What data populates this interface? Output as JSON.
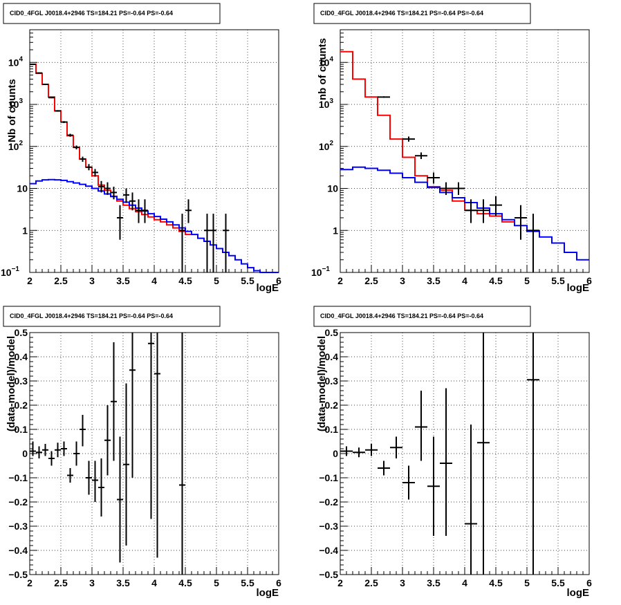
{
  "chart_data": [
    {
      "type": "line",
      "title": "CID0_4FGL J0018.4+2946 TS=184.21 PS=-0.64 PS=-0.64",
      "xlabel": "logE",
      "ylabel": "Nb of counts",
      "xlim": [
        2,
        6
      ],
      "ylim": [
        0.1,
        60000
      ],
      "yscale": "log",
      "grid": true,
      "x_ticks": [
        "2",
        "2.5",
        "3",
        "3.5",
        "4",
        "4.5",
        "5",
        "5.5",
        "6"
      ],
      "y_ticks": [
        {
          "v": 0.1,
          "label": "10",
          "exp": "−1"
        },
        {
          "v": 1,
          "label": "1"
        },
        {
          "v": 10,
          "label": "10"
        },
        {
          "v": 100,
          "label": "10",
          "exp": "2"
        },
        {
          "v": 1000,
          "label": "10",
          "exp": "3"
        },
        {
          "v": 10000,
          "label": "10",
          "exp": "4"
        }
      ],
      "series": [
        {
          "kind": "step",
          "color": "#ff0000",
          "x_start": 2,
          "bin_width": 0.1,
          "values": [
            9000,
            5500,
            3000,
            1500,
            700,
            380,
            180,
            95,
            50,
            32,
            20,
            12,
            9,
            6.5,
            5,
            4,
            3.3,
            2.8,
            2.4,
            2.1,
            1.8,
            1.6,
            1.35,
            1.15,
            0.95,
            0.8
          ]
        },
        {
          "kind": "step",
          "color": "#0000ff",
          "x_start": 2,
          "bin_width": 0.1,
          "values": [
            13,
            15,
            16,
            16.2,
            16,
            15.5,
            14.5,
            13.5,
            12.5,
            11.3,
            10,
            8.7,
            7.4,
            6.4,
            5.5,
            4.7,
            4,
            3.4,
            2.9,
            2.5,
            2.15,
            1.85,
            1.6,
            1.35,
            1.15,
            0.95,
            0.8,
            0.65,
            0.55,
            0.45,
            0.37,
            0.3,
            0.25,
            0.2,
            0.16,
            0.13,
            0.11,
            0.09,
            0.08,
            0.07
          ]
        },
        {
          "kind": "points",
          "color": "#000000",
          "half_width": 0.05,
          "points": [
            {
              "x": 2.05,
              "y": 9000,
              "lo": 8800,
              "hi": 9200
            },
            {
              "x": 2.15,
              "y": 5600,
              "lo": 5450,
              "hi": 5750
            },
            {
              "x": 2.25,
              "y": 3000,
              "lo": 2900,
              "hi": 3100
            },
            {
              "x": 2.35,
              "y": 1450,
              "lo": 1400,
              "hi": 1500
            },
            {
              "x": 2.45,
              "y": 700,
              "lo": 670,
              "hi": 730
            },
            {
              "x": 2.55,
              "y": 380,
              "lo": 360,
              "hi": 400
            },
            {
              "x": 2.65,
              "y": 185,
              "lo": 170,
              "hi": 200
            },
            {
              "x": 2.75,
              "y": 95,
              "lo": 85,
              "hi": 105
            },
            {
              "x": 2.85,
              "y": 50,
              "lo": 43,
              "hi": 57
            },
            {
              "x": 2.95,
              "y": 32,
              "lo": 27,
              "hi": 38
            },
            {
              "x": 3.05,
              "y": 24,
              "lo": 19,
              "hi": 29
            },
            {
              "x": 3.15,
              "y": 11,
              "lo": 8,
              "hi": 15
            },
            {
              "x": 3.25,
              "y": 10,
              "lo": 7,
              "hi": 14
            },
            {
              "x": 3.35,
              "y": 8,
              "lo": 5.5,
              "hi": 11
            },
            {
              "x": 3.45,
              "y": 2,
              "lo": 0.6,
              "hi": 4
            },
            {
              "x": 3.55,
              "y": 7,
              "lo": 4.5,
              "hi": 10
            },
            {
              "x": 3.65,
              "y": 5,
              "lo": 3,
              "hi": 8
            },
            {
              "x": 3.75,
              "y": 3,
              "lo": 1.5,
              "hi": 5.5
            },
            {
              "x": 3.85,
              "y": 3,
              "lo": 1.5,
              "hi": 5.5
            },
            {
              "x": 4.45,
              "y": 1,
              "lo": 0.1,
              "hi": 2.5
            },
            {
              "x": 4.55,
              "y": 3,
              "lo": 1.5,
              "hi": 5.5
            },
            {
              "x": 4.85,
              "y": 1,
              "lo": 0.1,
              "hi": 2.5
            },
            {
              "x": 4.95,
              "y": 1,
              "lo": 0.1,
              "hi": 2.5
            },
            {
              "x": 5.15,
              "y": 1,
              "lo": 0.1,
              "hi": 2.5
            }
          ]
        }
      ]
    },
    {
      "type": "line",
      "title": "CID0_4FGL J0018.4+2946 TS=184.21 PS=-0.64 PS=-0.64",
      "xlabel": "logE",
      "ylabel": "nb of counts",
      "xlim": [
        2,
        6
      ],
      "ylim": [
        0.1,
        60000
      ],
      "yscale": "log",
      "grid": true,
      "x_ticks": [
        "2",
        "2.5",
        "3",
        "3.5",
        "4",
        "4.5",
        "5",
        "5.5",
        "6"
      ],
      "y_ticks": [
        {
          "v": 0.1,
          "label": "10",
          "exp": "−1"
        },
        {
          "v": 1,
          "label": "1"
        },
        {
          "v": 10,
          "label": "10"
        },
        {
          "v": 100,
          "label": "10",
          "exp": "2"
        },
        {
          "v": 1000,
          "label": "10",
          "exp": "3"
        },
        {
          "v": 10000,
          "label": "10",
          "exp": "4"
        }
      ],
      "series": [
        {
          "kind": "step",
          "color": "#ff0000",
          "x_start": 2,
          "bin_width": 0.2,
          "values": [
            18000,
            4000,
            1500,
            550,
            150,
            55,
            20,
            11,
            9,
            5,
            3,
            2.5,
            2.2,
            1.6
          ]
        },
        {
          "kind": "step",
          "color": "#0000ff",
          "x_start": 2,
          "bin_width": 0.2,
          "values": [
            28,
            32,
            30,
            27,
            23,
            18,
            14,
            10.5,
            8,
            6,
            4.6,
            3.4,
            2.5,
            1.8,
            1.3,
            0.95,
            0.7,
            0.5,
            0.3,
            0.2
          ]
        },
        {
          "kind": "points",
          "color": "#000000",
          "half_width": 0.1,
          "points": [
            {
              "x": 2.7,
              "y": 1500,
              "lo": 1440,
              "hi": 1560
            },
            {
              "x": 3.1,
              "y": 150,
              "lo": 130,
              "hi": 172
            },
            {
              "x": 3.3,
              "y": 60,
              "lo": 50,
              "hi": 72
            },
            {
              "x": 3.5,
              "y": 18,
              "lo": 13,
              "hi": 24
            },
            {
              "x": 3.7,
              "y": 10,
              "lo": 7,
              "hi": 14
            },
            {
              "x": 3.9,
              "y": 10,
              "lo": 7,
              "hi": 14
            },
            {
              "x": 4.1,
              "y": 3,
              "lo": 1.5,
              "hi": 5.5
            },
            {
              "x": 4.3,
              "y": 3,
              "lo": 1.5,
              "hi": 5.5
            },
            {
              "x": 4.5,
              "y": 4,
              "lo": 2.2,
              "hi": 6.5
            },
            {
              "x": 4.9,
              "y": 2,
              "lo": 0.6,
              "hi": 4
            },
            {
              "x": 5.1,
              "y": 1,
              "lo": 0.1,
              "hi": 2.5
            }
          ]
        }
      ]
    },
    {
      "type": "scatter",
      "title": "CID0_4FGL J0018.4+2946 TS=184.21 PS=-0.64 PS=-0.64",
      "xlabel": "logE",
      "ylabel": "(data-model)/model",
      "xlim": [
        2,
        6
      ],
      "ylim": [
        -0.5,
        0.5
      ],
      "yscale": "linear",
      "grid": true,
      "x_ticks": [
        "2",
        "2.5",
        "3",
        "3.5",
        "4",
        "4.5",
        "5",
        "5.5",
        "6"
      ],
      "y_ticks": [
        {
          "v": -0.5,
          "label": "−0.5"
        },
        {
          "v": -0.4,
          "label": "−0.4"
        },
        {
          "v": -0.3,
          "label": "−0.3"
        },
        {
          "v": -0.2,
          "label": "−0.2"
        },
        {
          "v": -0.1,
          "label": "−0.1"
        },
        {
          "v": 0,
          "label": "0"
        },
        {
          "v": 0.1,
          "label": "0.1"
        },
        {
          "v": 0.2,
          "label": "0.2"
        },
        {
          "v": 0.3,
          "label": "0.3"
        },
        {
          "v": 0.4,
          "label": "0.4"
        },
        {
          "v": 0.5,
          "label": "0.5"
        }
      ],
      "series": [
        {
          "kind": "points",
          "color": "#000000",
          "half_width": 0.05,
          "points": [
            {
              "x": 2.05,
              "y": 0.01,
              "lo": -0.01,
              "hi": 0.05
            },
            {
              "x": 2.15,
              "y": 0.005,
              "lo": -0.02,
              "hi": 0.03
            },
            {
              "x": 2.25,
              "y": 0.015,
              "lo": -0.01,
              "hi": 0.04
            },
            {
              "x": 2.35,
              "y": -0.02,
              "lo": -0.05,
              "hi": 0.01
            },
            {
              "x": 2.45,
              "y": 0.015,
              "lo": -0.015,
              "hi": 0.045
            },
            {
              "x": 2.55,
              "y": 0.02,
              "lo": -0.01,
              "hi": 0.05
            },
            {
              "x": 2.65,
              "y": -0.09,
              "lo": -0.12,
              "hi": -0.06
            },
            {
              "x": 2.75,
              "y": 0.0,
              "lo": -0.05,
              "hi": 0.05
            },
            {
              "x": 2.85,
              "y": 0.1,
              "lo": 0.03,
              "hi": 0.16
            },
            {
              "x": 2.95,
              "y": -0.1,
              "lo": -0.17,
              "hi": -0.03
            },
            {
              "x": 3.05,
              "y": -0.11,
              "lo": -0.2,
              "hi": -0.03
            },
            {
              "x": 3.15,
              "y": -0.14,
              "lo": -0.26,
              "hi": -0.02
            },
            {
              "x": 3.25,
              "y": 0.055,
              "lo": -0.09,
              "hi": 0.2
            },
            {
              "x": 3.35,
              "y": 0.215,
              "lo": -0.03,
              "hi": 0.46
            },
            {
              "x": 3.45,
              "y": -0.19,
              "lo": -0.45,
              "hi": 0.07
            },
            {
              "x": 3.55,
              "y": -0.045,
              "lo": -0.38,
              "hi": 0.29
            },
            {
              "x": 3.65,
              "y": 0.345,
              "lo": -0.1,
              "hi": 0.5
            },
            {
              "x": 3.95,
              "y": 0.455,
              "lo": -0.27,
              "hi": 0.5
            },
            {
              "x": 4.05,
              "y": 0.33,
              "lo": -0.43,
              "hi": 0.5
            },
            {
              "x": 4.45,
              "y": -0.13,
              "lo": -0.5,
              "hi": 0.5
            }
          ]
        }
      ]
    },
    {
      "type": "scatter",
      "title": "CID0_4FGL J0018.4+2946 TS=184.21 PS=-0.64 PS=-0.64",
      "xlabel": "logE",
      "ylabel": "(data-model)/model",
      "xlim": [
        2,
        6
      ],
      "ylim": [
        -0.5,
        0.5
      ],
      "yscale": "linear",
      "grid": true,
      "x_ticks": [
        "2",
        "2.5",
        "3",
        "3.5",
        "4",
        "4.5",
        "5",
        "5.5",
        "6"
      ],
      "y_ticks": [
        {
          "v": -0.5,
          "label": "−0.5"
        },
        {
          "v": -0.4,
          "label": "−0.4"
        },
        {
          "v": -0.3,
          "label": "−0.3"
        },
        {
          "v": -0.2,
          "label": "−0.2"
        },
        {
          "v": -0.1,
          "label": "−0.1"
        },
        {
          "v": 0,
          "label": "0"
        },
        {
          "v": 0.1,
          "label": "0.1"
        },
        {
          "v": 0.2,
          "label": "0.2"
        },
        {
          "v": 0.3,
          "label": "0.3"
        },
        {
          "v": 0.4,
          "label": "0.4"
        },
        {
          "v": 0.5,
          "label": "0.5"
        }
      ],
      "series": [
        {
          "kind": "points",
          "color": "#000000",
          "half_width": 0.1,
          "points": [
            {
              "x": 2.1,
              "y": 0.01,
              "lo": -0.01,
              "hi": 0.03
            },
            {
              "x": 2.3,
              "y": 0.005,
              "lo": -0.015,
              "hi": 0.025
            },
            {
              "x": 2.5,
              "y": 0.015,
              "lo": -0.01,
              "hi": 0.04
            },
            {
              "x": 2.7,
              "y": -0.06,
              "lo": -0.09,
              "hi": -0.03
            },
            {
              "x": 2.9,
              "y": 0.025,
              "lo": -0.02,
              "hi": 0.07
            },
            {
              "x": 3.1,
              "y": -0.12,
              "lo": -0.19,
              "hi": -0.05
            },
            {
              "x": 3.3,
              "y": 0.11,
              "lo": -0.03,
              "hi": 0.26
            },
            {
              "x": 3.5,
              "y": -0.135,
              "lo": -0.34,
              "hi": 0.07
            },
            {
              "x": 3.7,
              "y": -0.04,
              "lo": -0.34,
              "hi": 0.27
            },
            {
              "x": 4.1,
              "y": -0.29,
              "lo": -0.5,
              "hi": 0.12
            },
            {
              "x": 4.3,
              "y": 0.045,
              "lo": -0.5,
              "hi": 0.5
            },
            {
              "x": 5.1,
              "y": 0.305,
              "lo": -0.5,
              "hi": 0.5
            }
          ]
        }
      ]
    }
  ]
}
